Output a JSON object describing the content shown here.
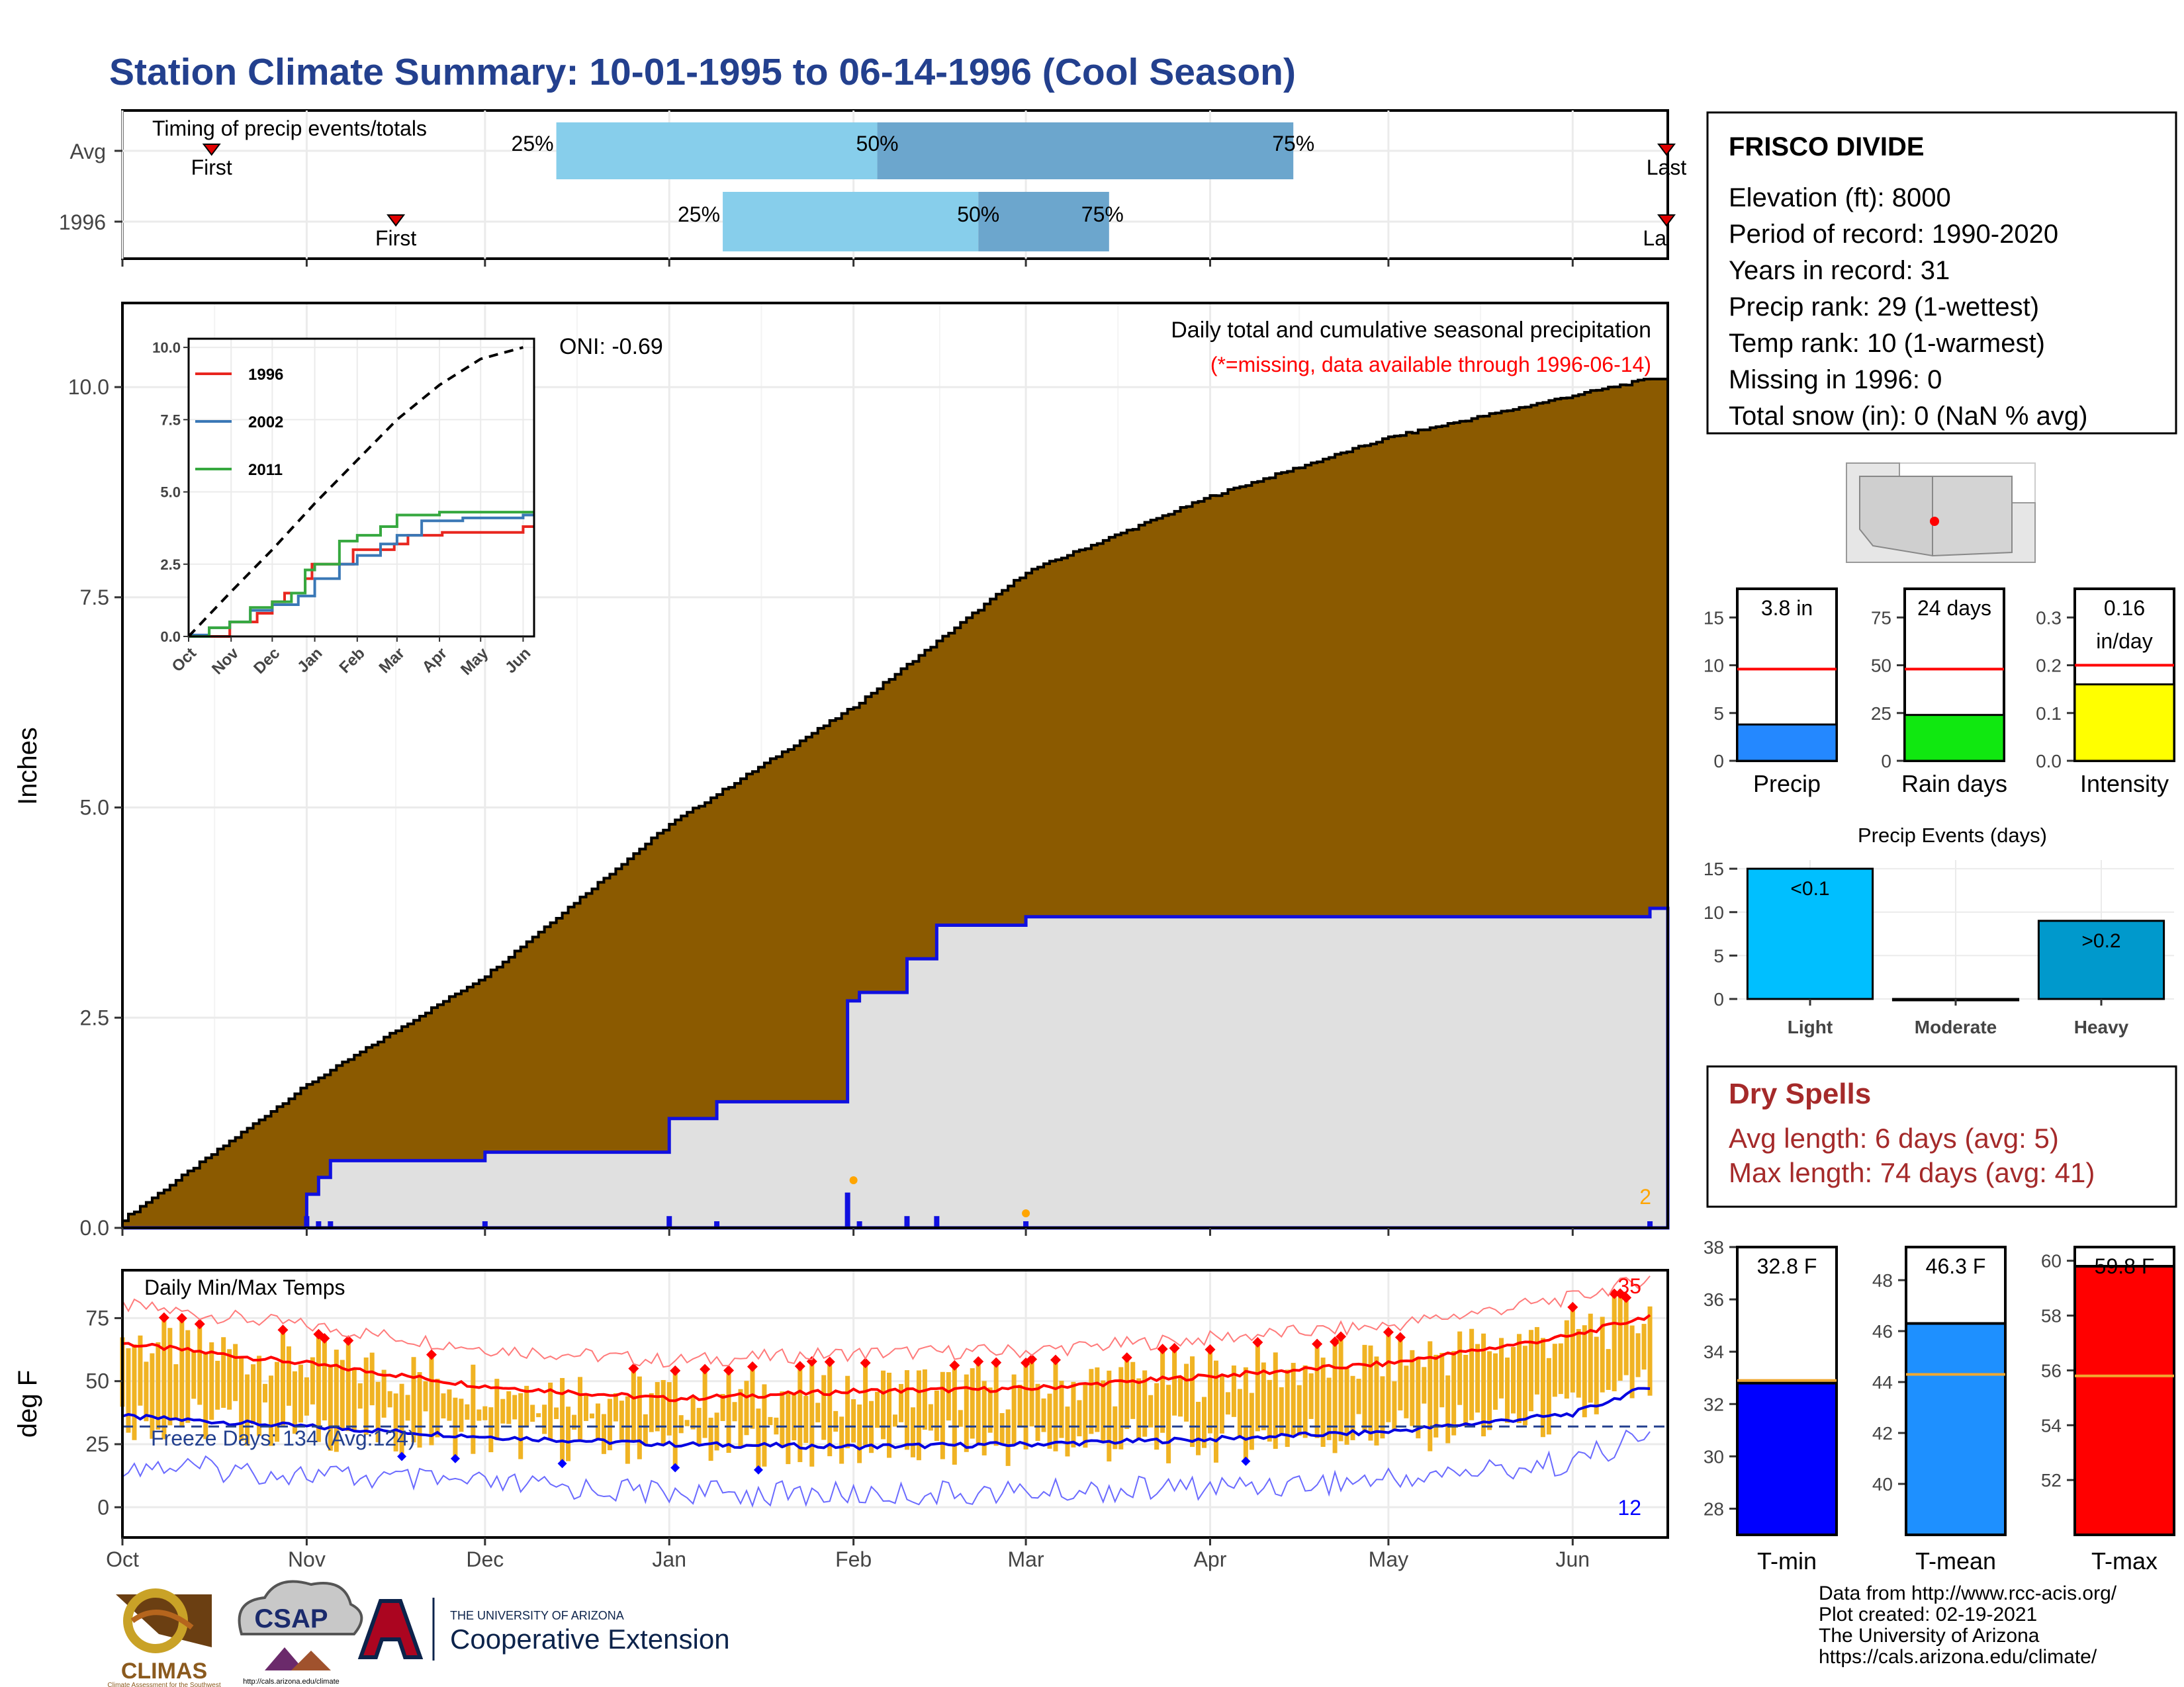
{
  "page": {
    "title": "Station Climate Summary: 10-01-1995 to 06-14-1996 (Cool Season)",
    "title_color": "#23408e"
  },
  "timing": {
    "label": "Timing of precip events/totals",
    "rows": [
      {
        "label": "Avg",
        "first": 15,
        "q25": 73,
        "q50": 127,
        "q75": 197,
        "last": 300
      },
      {
        "label": "1996",
        "first": 46,
        "q25": 101,
        "q50": 144,
        "q75": 166,
        "last": 338
      }
    ],
    "first_label": "First",
    "last_label": "Last",
    "last_label_clipped": "La",
    "p25": "25%",
    "p50": "50%",
    "p75": "75%"
  },
  "x_axis": {
    "ticks": [
      {
        "d": 0,
        "label": "Oct"
      },
      {
        "d": 31,
        "label": "Nov"
      },
      {
        "d": 61,
        "label": "Dec"
      },
      {
        "d": 92,
        "label": "Jan"
      },
      {
        "d": 123,
        "label": "Feb"
      },
      {
        "d": 152,
        "label": "Mar"
      },
      {
        "d": 183,
        "label": "Apr"
      },
      {
        "d": 213,
        "label": "May"
      },
      {
        "d": 244,
        "label": "Jun"
      }
    ],
    "max_day": 260
  },
  "precip_panel": {
    "ylabel": "Inches",
    "yticks": [
      "0.0",
      "2.5",
      "5.0",
      "7.5",
      "10.0"
    ],
    "ymax": 11,
    "caption": "Daily total and cumulative seasonal precipitation",
    "missing_note": "(*=missing, data available through 1996-06-14)",
    "oni": "ONI: -0.69",
    "count_label": "2"
  },
  "inset": {
    "yticks": [
      "0.0",
      "2.5",
      "5.0",
      "7.5",
      "10.0"
    ],
    "xticks": [
      "Oct",
      "Nov",
      "Dec",
      "Jan",
      "Feb",
      "Mar",
      "Apr",
      "May",
      "Jun"
    ],
    "legend": [
      {
        "name": "1996",
        "color": "#e8261f"
      },
      {
        "name": "2002",
        "color": "#3a78b6"
      },
      {
        "name": "2011",
        "color": "#36a83f"
      }
    ]
  },
  "temp_panel": {
    "ylabel": "deg F",
    "yticks": [
      "0",
      "25",
      "50",
      "75"
    ],
    "caption": "Daily Min/Max Temps",
    "freeze": "Freeze Days: 134 (Avg:124)",
    "max_count": "35",
    "min_count": "12"
  },
  "info": {
    "station": "FRISCO DIVIDE",
    "lines": [
      "Elevation (ft): 8000",
      "Period of record: 1990-2020",
      "Years in record: 31",
      "Precip rank: 29 (1-wettest)",
      "Temp rank: 10 (1-warmest)",
      "Missing in 1996: 0",
      "Total snow (in): 0 (NaN % avg)"
    ]
  },
  "mini_bars": [
    {
      "name": "Precip",
      "value_label": "3.8 in",
      "value": 3.8,
      "avg": 9.6,
      "max": 18,
      "ticks": [
        "0",
        "5",
        "10",
        "15"
      ],
      "color": "#2488ff"
    },
    {
      "name": "Rain days",
      "value_label": "24 days",
      "value": 24,
      "avg": 48,
      "max": 90,
      "ticks": [
        "0",
        "25",
        "50",
        "75"
      ],
      "color": "#10e810"
    },
    {
      "name": "Intensity",
      "value_label": "0.16",
      "value_unit": "in/day",
      "value": 0.16,
      "avg": 0.2,
      "max": 0.36,
      "ticks": [
        "0.0",
        "0.1",
        "0.2",
        "0.3"
      ],
      "color": "#ffff00"
    }
  ],
  "events": {
    "title": "Precip Events (days)",
    "categories": [
      "Light",
      "Moderate",
      "Heavy"
    ],
    "values": [
      15,
      0,
      9
    ],
    "labels": [
      "<0.1",
      "",
      ">0.2"
    ],
    "colors": [
      "#00bfff",
      "#00bfff",
      "#0099cc"
    ],
    "ymax": 16,
    "yticks": [
      "0",
      "5",
      "10",
      "15"
    ]
  },
  "dry": {
    "title": "Dry Spells",
    "avg": "Avg length: 6 days (avg: 5)",
    "max": "Max length: 74 days (avg: 41)",
    "color": "#a52a2a"
  },
  "temp_bars": [
    {
      "name": "T-min",
      "value_label": "32.8 F",
      "value": 32.8,
      "avg": 32.9,
      "min": 27,
      "max": 38,
      "ticks": [
        "28",
        "30",
        "32",
        "34",
        "36",
        "38"
      ],
      "color": "#0000ff"
    },
    {
      "name": "T-mean",
      "value_label": "46.3 F",
      "value": 46.3,
      "avg": 44.3,
      "min": 38,
      "max": 49.3,
      "ticks": [
        "40",
        "42",
        "44",
        "46",
        "48"
      ],
      "color": "#1e90ff"
    },
    {
      "name": "T-max",
      "value_label": "59.8 F",
      "value": 59.8,
      "avg": 55.8,
      "min": 50,
      "max": 60.5,
      "ticks": [
        "52",
        "54",
        "56",
        "58",
        "60"
      ],
      "color": "#ff0000"
    }
  ],
  "credits": [
    "Data from http://www.rcc-acis.org/",
    "Plot created: 02-19-2021",
    "The University of Arizona",
    "https://cals.arizona.edu/climate/"
  ],
  "logos": {
    "climas": "CLIMAS",
    "climas_sub": "Climate Assessment for the Southwest",
    "csap": "CSAP",
    "csap_url": "http://cals.arizona.edu/climate",
    "ua_small": "THE UNIVERSITY OF ARIZONA",
    "ua_big": "Cooperative Extension"
  },
  "chart_data": [
    {
      "type": "area",
      "title": "Daily total and cumulative seasonal precipitation",
      "ylabel": "Inches",
      "ylim": [
        0,
        11
      ],
      "series": [
        {
          "name": "avg cumulative",
          "x": [
            0,
            31,
            61,
            92,
            123,
            152,
            183,
            213,
            244,
            257
          ],
          "values": [
            0.1,
            1.7,
            3.0,
            4.8,
            6.2,
            7.8,
            8.7,
            9.4,
            9.9,
            10.1
          ]
        },
        {
          "name": "1996",
          "x": [
            0,
            24,
            31,
            33,
            35,
            61,
            92,
            100,
            122,
            124,
            132,
            137,
            152,
            183,
            257
          ],
          "values": [
            0,
            0,
            0.4,
            0.6,
            0.8,
            0.9,
            1.3,
            1.5,
            2.7,
            2.8,
            3.2,
            3.6,
            3.7,
            3.7,
            3.8
          ]
        }
      ]
    },
    {
      "type": "line",
      "title": "",
      "ylim": [
        0,
        10
      ],
      "series": [
        {
          "name": "1996",
          "x": [
            0,
            9,
            20,
            30,
            50,
            61,
            70,
            85,
            90,
            120,
            150,
            160,
            185,
            244
          ],
          "values": [
            0,
            0,
            0,
            0.5,
            0.8,
            1.2,
            1.5,
            2.0,
            2.5,
            3.0,
            3.2,
            3.5,
            3.6,
            3.8
          ]
        },
        {
          "name": "2002",
          "x": [
            0,
            15,
            30,
            45,
            61,
            80,
            92,
            110,
            123,
            140,
            152,
            170,
            200,
            244
          ],
          "values": [
            0.05,
            0.3,
            0.5,
            0.9,
            1.1,
            1.4,
            2.0,
            2.5,
            2.8,
            3.2,
            3.5,
            4.0,
            4.1,
            4.2
          ]
        },
        {
          "name": "2011",
          "x": [
            0,
            15,
            30,
            45,
            61,
            75,
            85,
            92,
            110,
            123,
            140,
            152,
            183,
            244
          ],
          "values": [
            0,
            0.3,
            0.5,
            1.0,
            1.2,
            1.5,
            2.3,
            2.5,
            3.3,
            3.5,
            3.8,
            4.2,
            4.3,
            4.3
          ]
        },
        {
          "name": "avg",
          "x": [
            0,
            30,
            61,
            92,
            123,
            152,
            183,
            213,
            244
          ],
          "values": [
            0,
            1.5,
            3.0,
            4.6,
            6.1,
            7.5,
            8.7,
            9.6,
            10.0
          ]
        }
      ]
    },
    {
      "type": "line",
      "title": "Daily Min/Max Temps",
      "ylabel": "deg F",
      "ylim": [
        -10,
        95
      ],
      "series": [
        {
          "name": "avg max",
          "x": [
            0,
            31,
            61,
            92,
            123,
            152,
            183,
            213,
            244,
            257
          ],
          "values": [
            65,
            57,
            48,
            43,
            46,
            47,
            52,
            57,
            68,
            76
          ]
        },
        {
          "name": "avg min",
          "x": [
            0,
            31,
            61,
            92,
            123,
            152,
            183,
            213,
            244,
            257
          ],
          "values": [
            36,
            32,
            28,
            25,
            24,
            25,
            27,
            30,
            37,
            48
          ]
        }
      ]
    },
    {
      "type": "bar",
      "categories": [
        "Precip",
        "Rain days",
        "Intensity"
      ],
      "values": [
        3.8,
        24,
        0.16
      ]
    },
    {
      "type": "bar",
      "title": "Precip Events (days)",
      "categories": [
        "Light",
        "Moderate",
        "Heavy"
      ],
      "values": [
        15,
        0,
        9
      ]
    },
    {
      "type": "bar",
      "categories": [
        "T-min",
        "T-mean",
        "T-max"
      ],
      "values": [
        32.8,
        46.3,
        59.8
      ]
    }
  ]
}
